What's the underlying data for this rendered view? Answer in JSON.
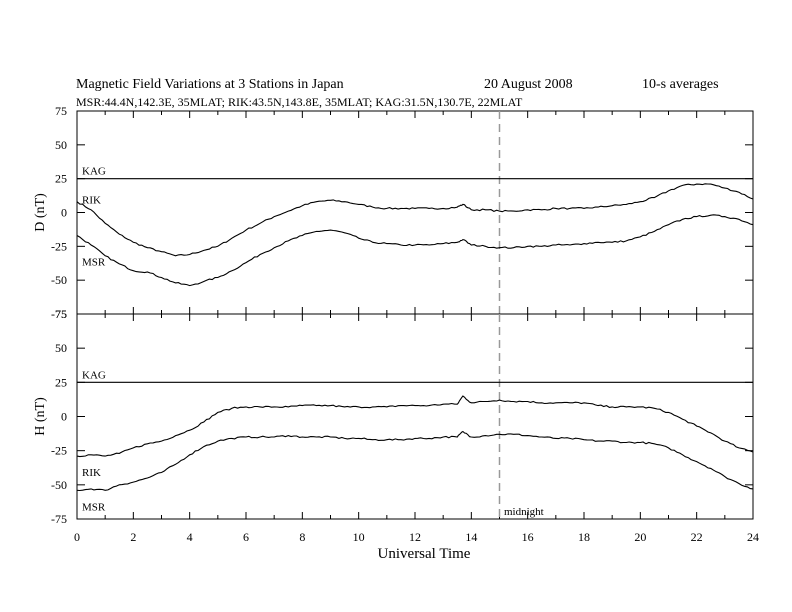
{
  "header": {
    "title": "Magnetic Field Variations at 3 Stations in Japan",
    "date": "20 August  2008",
    "averaging": "10-s averages",
    "stations": "MSR:44.4N,142.3E, 35MLAT;  RIK:43.5N,143.8E, 35MLAT;  KAG:31.5N,130.7E, 22MLAT"
  },
  "chart_data": [
    {
      "type": "line",
      "panel": "top",
      "ylabel": "D (nT)",
      "xlabel": "",
      "xlim": [
        0,
        24
      ],
      "ylim": [
        -75,
        75
      ],
      "yticks": [
        75,
        50,
        25,
        0,
        -25,
        -50,
        -75
      ],
      "grid": false,
      "x": [
        0,
        0.5,
        1,
        1.5,
        2,
        2.5,
        3,
        3.5,
        4,
        4.5,
        5,
        5.5,
        6,
        6.5,
        7,
        7.5,
        8,
        8.5,
        9,
        9.5,
        10,
        10.5,
        11,
        11.5,
        12,
        12.5,
        13,
        13.5,
        13.7,
        14,
        14.5,
        15,
        15.5,
        16,
        16.5,
        17,
        17.5,
        18,
        18.5,
        19,
        19.5,
        20,
        20.5,
        21,
        21.5,
        22,
        22.5,
        23,
        23.5,
        24
      ],
      "series": [
        {
          "name": "KAG",
          "values": [
            25,
            25,
            25,
            25,
            25,
            25,
            25,
            25,
            25,
            25,
            25,
            25,
            25,
            25,
            25,
            25,
            25,
            25,
            25,
            25,
            25,
            25,
            25,
            25,
            25,
            25,
            25,
            25,
            25,
            25,
            25,
            25,
            25,
            25,
            25,
            25,
            25,
            25,
            25,
            25,
            25,
            25,
            25,
            25,
            25,
            25,
            25,
            25,
            25,
            25
          ]
        },
        {
          "name": "RIK",
          "values": [
            8,
            2,
            -8,
            -16,
            -22,
            -26,
            -29,
            -32,
            -31,
            -28,
            -25,
            -19,
            -13,
            -8,
            -3,
            1,
            5,
            8,
            9,
            8,
            6,
            4,
            3,
            3,
            3,
            3,
            3,
            4,
            6,
            2,
            2,
            1,
            1,
            2,
            2,
            3,
            3,
            3,
            4,
            5,
            6,
            8,
            11,
            16,
            20,
            21,
            21,
            18,
            15,
            10
          ]
        },
        {
          "name": "MSR",
          "values": [
            -17,
            -24,
            -32,
            -38,
            -43,
            -44,
            -48,
            -52,
            -54,
            -51,
            -48,
            -43,
            -37,
            -31,
            -26,
            -21,
            -17,
            -14,
            -13,
            -15,
            -19,
            -22,
            -23,
            -24,
            -24,
            -24,
            -23,
            -22,
            -20,
            -24,
            -25,
            -26,
            -26,
            -25,
            -25,
            -24,
            -24,
            -23,
            -22,
            -22,
            -21,
            -18,
            -14,
            -9,
            -5,
            -3,
            -2,
            -3,
            -5,
            -9
          ]
        }
      ]
    },
    {
      "type": "line",
      "panel": "bottom",
      "ylabel": "H (nT)",
      "xlabel": "Universal Time",
      "xlim": [
        0,
        24
      ],
      "ylim": [
        -75,
        75
      ],
      "yticks": [
        75,
        50,
        25,
        0,
        -25,
        -50,
        -75
      ],
      "xticks": [
        0,
        2,
        4,
        6,
        8,
        10,
        12,
        14,
        16,
        18,
        20,
        22,
        24
      ],
      "grid": false,
      "x": [
        0,
        0.5,
        1,
        1.5,
        2,
        2.5,
        3,
        3.5,
        4,
        4.5,
        5,
        5.5,
        6,
        6.5,
        7,
        7.5,
        8,
        8.5,
        9,
        9.5,
        10,
        10.5,
        11,
        11.5,
        12,
        12.5,
        13,
        13.5,
        13.7,
        14,
        14.5,
        15,
        15.5,
        16,
        16.5,
        17,
        17.5,
        18,
        18.5,
        19,
        19.5,
        20,
        20.5,
        21,
        21.5,
        22,
        22.5,
        23,
        23.5,
        24
      ],
      "series": [
        {
          "name": "KAG",
          "values": [
            25,
            25,
            25,
            25,
            25,
            25,
            25,
            25,
            25,
            25,
            25,
            25,
            25,
            25,
            25,
            25,
            25,
            25,
            25,
            25,
            25,
            25,
            25,
            25,
            25,
            25,
            25,
            25,
            25,
            25,
            25,
            25,
            25,
            25,
            25,
            25,
            25,
            25,
            25,
            25,
            25,
            25,
            25,
            25,
            25,
            25,
            25,
            25,
            25,
            25
          ]
        },
        {
          "name": "RIK",
          "values": [
            -29,
            -28,
            -29,
            -27,
            -23,
            -20,
            -18,
            -14,
            -10,
            -4,
            3,
            6,
            7,
            7,
            7,
            7,
            8,
            8,
            8,
            7,
            7,
            7,
            7,
            8,
            8,
            8,
            9,
            9,
            15,
            10,
            11,
            12,
            11,
            11,
            10,
            10,
            10,
            10,
            8,
            7,
            7,
            7,
            6,
            3,
            -2,
            -7,
            -12,
            -18,
            -23,
            -26
          ]
        },
        {
          "name": "MSR",
          "values": [
            -54,
            -53,
            -54,
            -50,
            -48,
            -45,
            -41,
            -35,
            -28,
            -22,
            -18,
            -16,
            -15,
            -15,
            -15,
            -14,
            -15,
            -15,
            -15,
            -16,
            -16,
            -17,
            -17,
            -17,
            -16,
            -16,
            -15,
            -15,
            -11,
            -15,
            -14,
            -13,
            -13,
            -14,
            -15,
            -16,
            -16,
            -17,
            -18,
            -18,
            -19,
            -19,
            -20,
            -23,
            -28,
            -33,
            -38,
            -44,
            -49,
            -53
          ]
        }
      ]
    }
  ],
  "annotations": {
    "midnight_label": "midnight",
    "midnight_x": 15
  }
}
